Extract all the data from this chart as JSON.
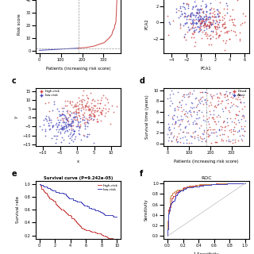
{
  "n_patients": 364,
  "cutoff_patient": 182,
  "colors": {
    "high_risk": "#cc4444",
    "low_risk": "#4444bb",
    "dead": "#cc4444",
    "alive": "#4444bb",
    "dotted_line": "#999999",
    "roc_orange": "#cc8844"
  },
  "panel_a": {
    "ylabel": "Risk score",
    "xlabel": "Patients (increasing risk score)"
  },
  "panel_b": {
    "xlabel": "PCA1",
    "ylabel": "PCA2"
  },
  "panel_c": {
    "xlabel": "x",
    "ylabel": "y",
    "legend_labels": [
      "high-risk",
      "low-risk"
    ]
  },
  "panel_d": {
    "xlabel": "Patients (increasing risk score)",
    "ylabel": "Survival time (years)",
    "legend_labels": [
      "Dead",
      "Alive"
    ]
  },
  "panel_e": {
    "title": "Survival curve (P=9.242e-05)",
    "ylabel": "Survival rate",
    "legend_labels": [
      "high-risk",
      "low-risk"
    ]
  },
  "panel_f": {
    "title": "ROC",
    "ylabel": "Sensitivity",
    "xlabel": "1-Specificity"
  }
}
